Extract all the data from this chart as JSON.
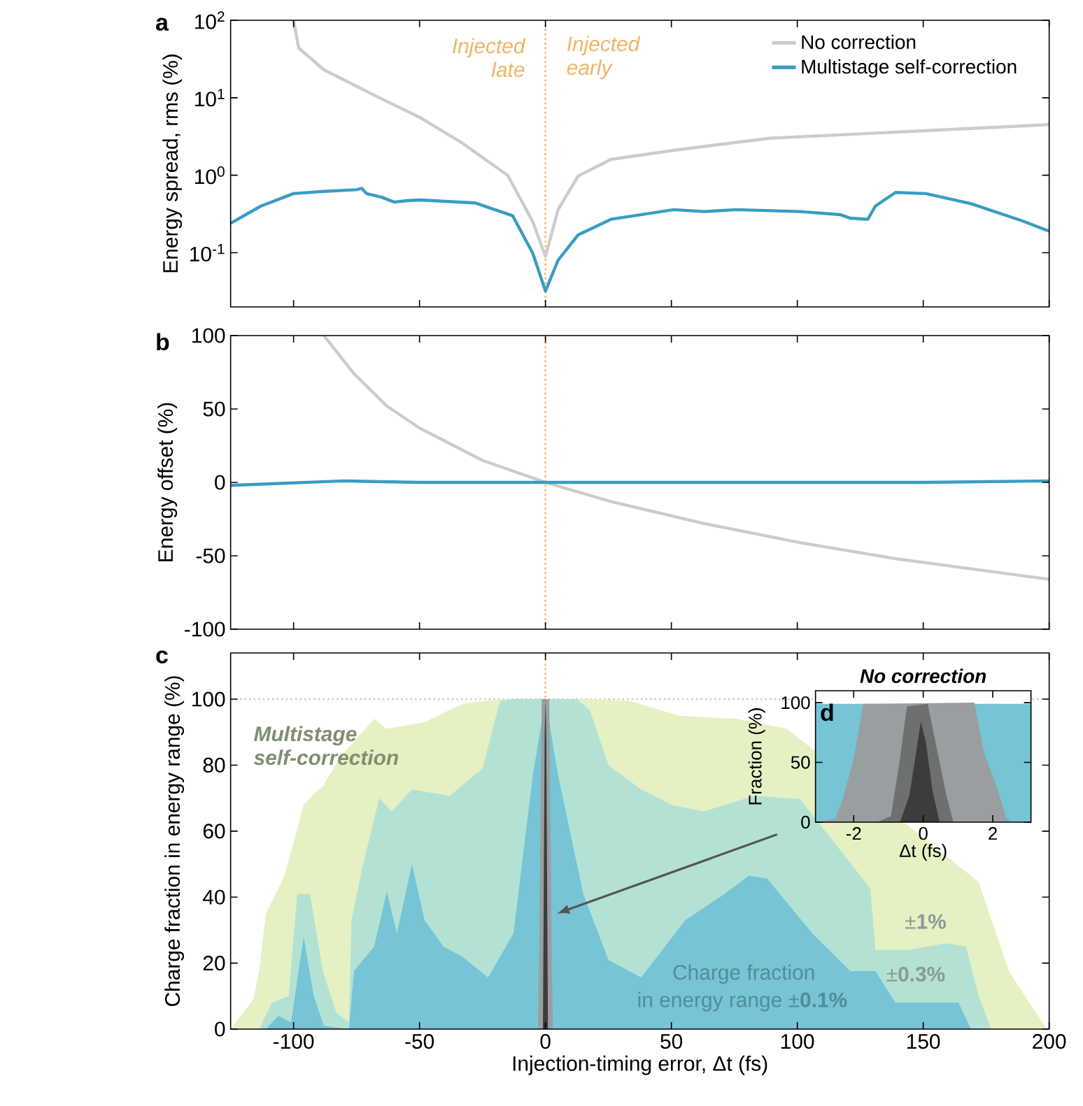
{
  "chart_data": [
    {
      "type": "line",
      "annotations": [
        "a",
        "Injected late",
        "Injected early"
      ],
      "ylabel": "Energy spread, rms (%)",
      "log": "y",
      "xlim": [
        -125,
        200
      ],
      "xticks": [
        -100,
        -50,
        0,
        50,
        100,
        150,
        200
      ],
      "ylim": [
        0.02,
        100
      ],
      "yticks": [
        {
          "value": 0.1,
          "label": "10$^{-1}$"
        },
        {
          "value": 1,
          "label": "10$^{0}$"
        },
        {
          "value": 10,
          "label": "10$^{1}$"
        },
        {
          "value": 100,
          "label": "10$^{2}$"
        }
      ],
      "tick_labels": "y",
      "legend": "top right",
      "ref_lines": [
        {
          "axis": "x",
          "value": 0,
          "color": "#f5b266",
          "line_style": "dotted"
        }
      ],
      "series": [
        {
          "name": "No correction",
          "color": "#cccccc",
          "x": [
            -100,
            -98,
            -88,
            -68,
            -50,
            -33,
            -15,
            -5,
            0,
            5,
            13,
            26,
            51,
            89,
            139,
            200
          ],
          "values": [
            100,
            44,
            23,
            10.8,
            5.6,
            2.6,
            1.0,
            0.25,
            0.089,
            0.36,
            0.98,
            1.6,
            2.1,
            3.0,
            3.6,
            4.5
          ]
        },
        {
          "name": "Multistage self-correction",
          "color": "#3a9cc2",
          "x": [
            -125,
            -113,
            -100,
            -88,
            -75,
            -73,
            -71,
            -65,
            -60,
            -55,
            -50,
            -28,
            -13,
            -5,
            0,
            5,
            13,
            26,
            51,
            63,
            76,
            101,
            117,
            121,
            128,
            131,
            139,
            151,
            169,
            189,
            200
          ],
          "values": [
            0.24,
            0.4,
            0.58,
            0.62,
            0.65,
            0.68,
            0.58,
            0.52,
            0.45,
            0.47,
            0.48,
            0.44,
            0.3,
            0.098,
            0.032,
            0.08,
            0.17,
            0.27,
            0.36,
            0.34,
            0.36,
            0.34,
            0.31,
            0.28,
            0.27,
            0.4,
            0.6,
            0.58,
            0.43,
            0.26,
            0.19
          ]
        }
      ]
    },
    {
      "type": "line",
      "annotations": [
        "b"
      ],
      "ylabel": "Energy offset (%)",
      "xlim": [
        -125,
        200
      ],
      "xticks": [
        -100,
        -50,
        0,
        50,
        100,
        150,
        200
      ],
      "ylim": [
        -100,
        100
      ],
      "yticks": [
        -100,
        -50,
        0,
        50,
        100
      ],
      "tick_labels": "y",
      "ref_lines": [
        {
          "axis": "x",
          "value": 0,
          "color": "#f5b266",
          "line_style": "dotted"
        }
      ],
      "series": [
        {
          "color": "#cccccc",
          "x": [
            -88,
            -76,
            -63,
            -50,
            -25,
            0,
            26,
            63,
            101,
            139,
            200
          ],
          "values": [
            100,
            74,
            52,
            37,
            15,
            0,
            -13,
            -28,
            -41,
            -52,
            -66
          ]
        },
        {
          "color": "#3a9cc2",
          "x": [
            -125,
            -80,
            -50,
            150,
            200
          ],
          "values": [
            -2,
            1,
            0,
            0,
            1
          ]
        }
      ]
    },
    {
      "type": "area",
      "annotations": [
        "c",
        "Multistage self-correction",
        "±**1%**",
        "±**0.3%**",
        "Charge fraction",
        "in energy range ±**0.1%**"
      ],
      "xlabel": "Injection-timing error, Δt (fs)",
      "ylabel": "Charge fraction in energy range (%)",
      "xlim": [
        -125,
        200
      ],
      "xticks": [
        -100,
        -50,
        0,
        50,
        100,
        150,
        200
      ],
      "ylim": [
        0,
        114
      ],
      "yticks": [
        0,
        20,
        40,
        60,
        80,
        100
      ],
      "ref_lines": [
        {
          "axis": "x",
          "value": 0,
          "color": "#f5b266",
          "line_style": "dotted"
        },
        {
          "axis": "y",
          "value": 100,
          "color": "#cccccc",
          "line_style": "dotted"
        }
      ],
      "series": [
        {
          "color": "#e5f1c3",
          "x": [
            -125,
            -116,
            -113.7,
            -111,
            -103.6,
            -96,
            -91,
            -88.4,
            -81,
            -68,
            -63,
            -48,
            -33,
            -18,
            17.6,
            33,
            53,
            76,
            96,
            126,
            139,
            156,
            164,
            172,
            184,
            199
          ],
          "values": [
            0,
            9,
            17.6,
            35,
            46.5,
            68,
            72,
            73.5,
            83,
            94,
            91,
            93,
            98.6,
            100,
            100,
            99.6,
            95,
            94,
            91,
            null,
            null,
            null,
            null,
            44.6,
            17.6,
            0
          ]
        },
        {
          "color": "#b3e2d4",
          "x": [
            -113.6,
            -108.6,
            -102,
            -98.5,
            -93.5,
            -88.4,
            -83,
            -78,
            -77,
            -73,
            -66,
            -61,
            -53,
            -38,
            -25,
            -18,
            -12.7,
            12.6,
            17.6,
            25,
            38,
            50.5,
            63,
            83,
            101,
            121,
            129,
            131,
            144,
            159,
            167,
            172,
            177
          ],
          "values": [
            0,
            8,
            10,
            41,
            41,
            17.6,
            5,
            2,
            33,
            48,
            70,
            66,
            72.6,
            70.7,
            79,
            99.6,
            100,
            100,
            96.7,
            80,
            72.6,
            67.8,
            66,
            70.7,
            69.7,
            null,
            42.7,
            24,
            24,
            26,
            25,
            10,
            0
          ]
        },
        {
          "color": "#76c4d6",
          "x": [
            -111,
            -106,
            -101,
            -96,
            -92,
            -88,
            -78,
            -76,
            -68,
            -63,
            -59,
            -53,
            -48,
            -40.5,
            -33,
            -22.8,
            -12.7,
            -5,
            0,
            5,
            15,
            25,
            38,
            55.5,
            70.6,
            80.8,
            88,
            106,
            121,
            131,
            139,
            164,
            169
          ],
          "values": [
            0,
            4,
            2,
            28,
            10,
            1,
            0,
            17.6,
            25,
            41.7,
            29,
            50,
            33,
            25,
            22,
            15.6,
            29,
            77,
            100,
            77,
            41,
            21,
            15.6,
            33,
            40.7,
            46.5,
            45.6,
            29,
            17.6,
            17.6,
            8,
            8,
            0
          ]
        },
        {
          "color": "#999fa0",
          "x": [
            -3,
            -2.5,
            -1.5,
            1.5,
            2.5,
            3
          ],
          "values": [
            0,
            20,
            100,
            100,
            20,
            0
          ]
        },
        {
          "color": "#3c3c3c",
          "x": [
            -1,
            -0.3,
            0,
            0.3,
            1
          ],
          "values": [
            0,
            90,
            100,
            90,
            0
          ]
        }
      ]
    },
    {
      "type": "area",
      "title": "No correction",
      "annotations": [
        "d"
      ],
      "xlabel": "Δt (fs)",
      "ylabel": "Fraction (%)",
      "xlim": [
        -3.1,
        3.1
      ],
      "xticks": [
        -2,
        0,
        2
      ],
      "ylim": [
        0,
        110
      ],
      "yticks": [
        0,
        50,
        100
      ],
      "series": [
        {
          "color": "#76c4d6",
          "x": [
            -3.1,
            3.1
          ],
          "values": [
            99,
            99
          ]
        },
        {
          "color": "#999fa0",
          "x": [
            -3.07,
            -2.53,
            -2.33,
            -2,
            -1.73,
            1.47,
            1.73,
            2.07,
            2.4,
            2.53
          ],
          "values": [
            0,
            3,
            18,
            53,
            99,
            100,
            60,
            33,
            3,
            0
          ]
        },
        {
          "color": "#6e7070",
          "x": [
            -1.33,
            -0.93,
            -0.67,
            -0.47,
            0.13,
            0.4,
            0.67,
            0.87
          ],
          "values": [
            0,
            5,
            53,
            97,
            99,
            60,
            22,
            0
          ]
        },
        {
          "color": "#3c3c3c",
          "x": [
            -0.67,
            -0.4,
            -0.07,
            0.07,
            0.27,
            0.47
          ],
          "values": [
            0,
            22,
            84,
            68,
            26,
            0
          ]
        }
      ]
    }
  ]
}
